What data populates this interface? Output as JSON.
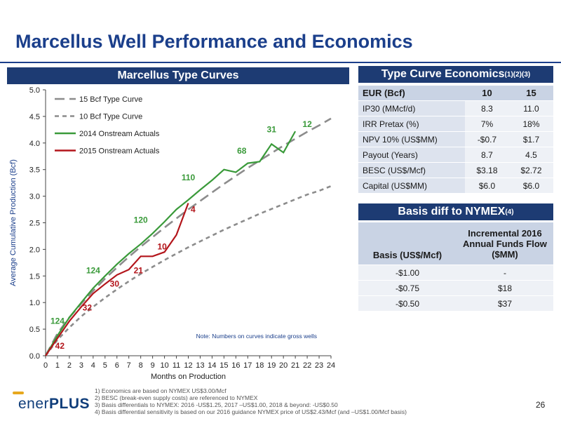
{
  "page": {
    "title": "Marcellus Well Performance and Economics",
    "page_number": "26",
    "logo": {
      "part1": "ener",
      "part2": "PLUS"
    }
  },
  "chart_panel": {
    "header": "Marcellus Type Curves"
  },
  "chart_data": {
    "type": "line",
    "xlabel": "Months on Production",
    "ylabel": "Average Cumulative Production (Bcf)",
    "xlim": [
      0,
      24
    ],
    "ylim": [
      0,
      5.0
    ],
    "xticks": [
      "0",
      "1",
      "2",
      "3",
      "4",
      "5",
      "6",
      "7",
      "8",
      "9",
      "10",
      "11",
      "12",
      "13",
      "14",
      "15",
      "16",
      "17",
      "18",
      "19",
      "20",
      "21",
      "22",
      "23",
      "24"
    ],
    "yticks": [
      "0.0",
      "0.5",
      "1.0",
      "1.5",
      "2.0",
      "2.5",
      "3.0",
      "3.5",
      "4.0",
      "4.5",
      "5.0"
    ],
    "note": "Note: Numbers on curves indicate gross wells",
    "legend_position": "top-left",
    "grid": false,
    "series": [
      {
        "name": "15 Bcf Type Curve",
        "color": "#8c8c8c",
        "style": "dashed-long",
        "x": [
          0,
          1,
          2,
          3,
          4,
          5,
          6,
          7,
          8,
          9,
          10,
          11,
          12,
          13,
          14,
          15,
          16,
          17,
          18,
          19,
          20,
          21,
          22,
          23,
          24
        ],
        "y": [
          0,
          0.42,
          0.72,
          0.98,
          1.22,
          1.45,
          1.66,
          1.86,
          2.05,
          2.23,
          2.41,
          2.58,
          2.75,
          2.91,
          3.07,
          3.23,
          3.38,
          3.53,
          3.67,
          3.81,
          3.95,
          4.08,
          4.21,
          4.33,
          4.46
        ]
      },
      {
        "name": "10 Bcf Type Curve",
        "color": "#8c8c8c",
        "style": "dashed-short",
        "x": [
          0,
          1,
          2,
          3,
          4,
          5,
          6,
          7,
          8,
          9,
          10,
          11,
          12,
          13,
          14,
          15,
          16,
          17,
          18,
          19,
          20,
          21,
          22,
          23,
          24
        ],
        "y": [
          0,
          0.3,
          0.53,
          0.74,
          0.92,
          1.09,
          1.25,
          1.4,
          1.54,
          1.67,
          1.8,
          1.92,
          2.04,
          2.15,
          2.26,
          2.37,
          2.47,
          2.57,
          2.67,
          2.76,
          2.85,
          2.94,
          3.03,
          3.1,
          3.19
        ]
      },
      {
        "name": "2014 Onstream Actuals",
        "color": "#3a9a3a",
        "style": "solid",
        "x": [
          0,
          1,
          2,
          3,
          4,
          5,
          6,
          7,
          8,
          9,
          10,
          11,
          12,
          13,
          14,
          15,
          16,
          17,
          18,
          19,
          20,
          21
        ],
        "y": [
          0,
          0.38,
          0.72,
          1.0,
          1.27,
          1.5,
          1.72,
          1.92,
          2.1,
          2.3,
          2.52,
          2.75,
          2.93,
          3.12,
          3.3,
          3.5,
          3.45,
          3.62,
          3.65,
          3.98,
          3.82,
          4.22
        ]
      },
      {
        "name": "2015 Onstream Actuals",
        "color": "#b3151b",
        "style": "solid",
        "x": [
          0,
          1,
          2,
          3,
          4,
          5,
          6,
          7,
          8,
          9,
          10,
          11,
          12
        ],
        "y": [
          0,
          0.33,
          0.65,
          0.92,
          1.17,
          1.35,
          1.52,
          1.62,
          1.87,
          1.87,
          1.95,
          2.27,
          2.87
        ]
      }
    ],
    "annotations": [
      {
        "text": "124",
        "x": 1,
        "y": 0.6,
        "color": "#3a9a3a"
      },
      {
        "text": "124",
        "x": 4,
        "y": 1.55,
        "color": "#3a9a3a"
      },
      {
        "text": "120",
        "x": 8,
        "y": 2.5,
        "color": "#3a9a3a"
      },
      {
        "text": "110",
        "x": 12,
        "y": 3.3,
        "color": "#3a9a3a"
      },
      {
        "text": "68",
        "x": 16.5,
        "y": 3.8,
        "color": "#3a9a3a"
      },
      {
        "text": "31",
        "x": 19,
        "y": 4.2,
        "color": "#3a9a3a"
      },
      {
        "text": "12",
        "x": 22,
        "y": 4.3,
        "color": "#3a9a3a"
      },
      {
        "text": "42",
        "x": 1.2,
        "y": 0.13,
        "color": "#b3151b"
      },
      {
        "text": "32",
        "x": 3.5,
        "y": 0.85,
        "color": "#b3151b"
      },
      {
        "text": "30",
        "x": 5.8,
        "y": 1.3,
        "color": "#b3151b"
      },
      {
        "text": "21",
        "x": 7.8,
        "y": 1.55,
        "color": "#b3151b"
      },
      {
        "text": "10",
        "x": 9.8,
        "y": 2.0,
        "color": "#b3151b"
      },
      {
        "text": "4",
        "x": 12.4,
        "y": 2.7,
        "color": "#b3151b"
      }
    ]
  },
  "economics": {
    "header": "Type Curve Economics",
    "header_sup": "(1)(2)(3)",
    "columns": [
      "EUR (Bcf)",
      "10",
      "15"
    ],
    "rows": [
      [
        "IP30 (MMcf/d)",
        "8.3",
        "11.0"
      ],
      [
        "IRR Pretax (%)",
        "7%",
        "18%"
      ],
      [
        "NPV 10% (US$MM)",
        "-$0.7",
        "$1.7"
      ],
      [
        "Payout (Years)",
        "8.7",
        "4.5"
      ],
      [
        "BESC (US$/Mcf)",
        "$3.18",
        "$2.72"
      ],
      [
        "Capital (US$MM)",
        "$6.0",
        "$6.0"
      ]
    ]
  },
  "basis": {
    "header": "Basis diff to NYMEX",
    "header_sup": "(4)",
    "col1": "Basis (US$/Mcf)",
    "col2": "Incremental 2016 Annual Funds Flow ($MM)",
    "rows": [
      [
        "-$1.00",
        "-"
      ],
      [
        "-$0.75",
        "$18"
      ],
      [
        "-$0.50",
        "$37"
      ]
    ]
  },
  "footnotes": [
    "1)   Economics are based on NYMEX US$3.00/Mcf",
    "2)   BESC (break-even supply costs) are referenced to NYMEX",
    "3)   Basis differentials to NYMEX: 2016 -US$1.25, 2017 –US$1.00, 2018 & beyond: -US$0.50",
    "4)   Basis differential sensitivity is based on our 2016 guidance NYMEX price of US$2.43/Mcf (and –US$1.00/Mcf basis)"
  ]
}
